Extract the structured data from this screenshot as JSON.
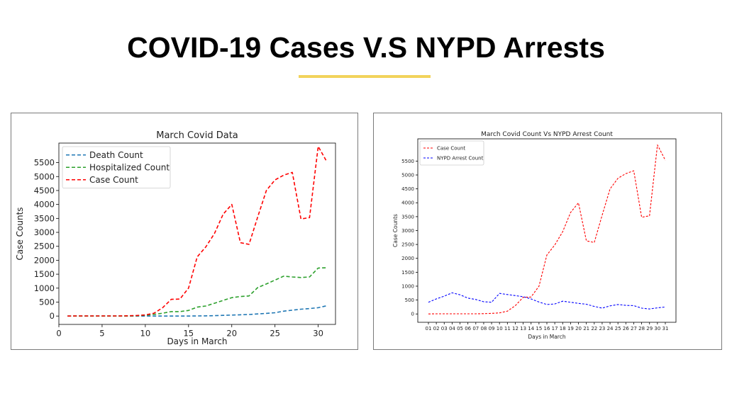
{
  "slide": {
    "title": "COVID-19 Cases V.S  NYPD Arrests",
    "accent_color": "#f2d35b"
  },
  "chart_data": [
    {
      "type": "line",
      "title": "March Covid Data",
      "xlabel": "Days in March",
      "ylabel": "Case Counts",
      "xlim": [
        0,
        32
      ],
      "ylim": [
        -300,
        6200
      ],
      "xticks": [
        "0",
        "5",
        "10",
        "15",
        "20",
        "25",
        "30"
      ],
      "yticks": [
        "0",
        "500",
        "1000",
        "1500",
        "2000",
        "2500",
        "3000",
        "3500",
        "4000",
        "4500",
        "5000",
        "5500"
      ],
      "legend_position": "top-left",
      "grid": false,
      "x": [
        1,
        2,
        3,
        4,
        5,
        6,
        7,
        8,
        9,
        10,
        11,
        12,
        13,
        14,
        15,
        16,
        17,
        18,
        19,
        20,
        21,
        22,
        23,
        24,
        25,
        26,
        27,
        28,
        29,
        30,
        31
      ],
      "series": [
        {
          "name": "Death Count",
          "color": "#1f77b4",
          "values": [
            0,
            0,
            0,
            0,
            0,
            0,
            0,
            0,
            0,
            0,
            0,
            0,
            0,
            0,
            0,
            5,
            8,
            15,
            25,
            35,
            45,
            55,
            75,
            95,
            120,
            175,
            210,
            245,
            270,
            300,
            370
          ]
        },
        {
          "name": "Hospitalized Count",
          "color": "#2ca02c",
          "values": [
            0,
            0,
            0,
            0,
            0,
            0,
            0,
            0,
            10,
            30,
            60,
            100,
            160,
            160,
            200,
            320,
            360,
            460,
            560,
            660,
            700,
            720,
            1020,
            1150,
            1290,
            1430,
            1400,
            1380,
            1400,
            1720,
            1730
          ]
        },
        {
          "name": "Case Count",
          "color": "#ff0000",
          "values": [
            0,
            5,
            5,
            5,
            5,
            5,
            5,
            10,
            20,
            40,
            100,
            300,
            600,
            610,
            1000,
            2120,
            2480,
            2960,
            3650,
            4000,
            2630,
            2570,
            3550,
            4500,
            4880,
            5050,
            5150,
            3480,
            3530,
            6080,
            5530
          ]
        }
      ]
    },
    {
      "type": "line",
      "title": "March Covid Count Vs NYPD Arrest Count",
      "xlabel": "Days in March",
      "ylabel": "Case Counts",
      "ylim": [
        -300,
        6300
      ],
      "categories": [
        "01",
        "02",
        "03",
        "04",
        "05",
        "06",
        "07",
        "08",
        "09",
        "10",
        "11",
        "12",
        "13",
        "14",
        "15",
        "16",
        "17",
        "18",
        "19",
        "20",
        "21",
        "22",
        "23",
        "24",
        "25",
        "26",
        "27",
        "28",
        "29",
        "30",
        "31"
      ],
      "yticks": [
        "0",
        "500",
        "1000",
        "1500",
        "2000",
        "2500",
        "3000",
        "3500",
        "4000",
        "4500",
        "5000",
        "5500"
      ],
      "legend_position": "top-left",
      "grid": false,
      "series": [
        {
          "name": "Case Count",
          "color": "#ff0000",
          "values": [
            0,
            5,
            5,
            5,
            5,
            5,
            5,
            10,
            20,
            40,
            100,
            300,
            600,
            610,
            1000,
            2120,
            2480,
            2960,
            3650,
            4000,
            2630,
            2570,
            3550,
            4500,
            4880,
            5050,
            5150,
            3480,
            3530,
            6080,
            5530
          ]
        },
        {
          "name": "NYPD Arrest Count",
          "color": "#0000ff",
          "values": [
            420,
            540,
            640,
            760,
            690,
            570,
            520,
            440,
            420,
            740,
            700,
            660,
            620,
            540,
            430,
            340,
            360,
            460,
            420,
            380,
            350,
            270,
            210,
            290,
            340,
            310,
            300,
            210,
            180,
            220,
            250
          ]
        }
      ]
    }
  ]
}
